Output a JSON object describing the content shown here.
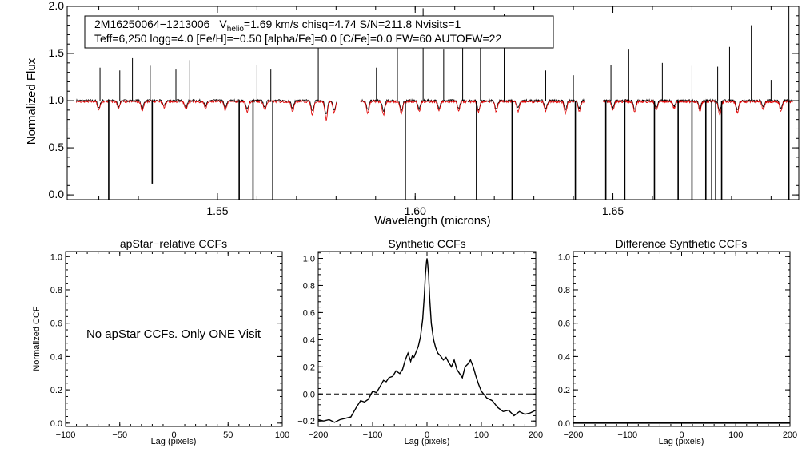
{
  "chart_data": [
    {
      "type": "line",
      "id": "spectrum",
      "xlabel": "Wavelength (microns)",
      "ylabel": "Normalized Flux",
      "xlim": [
        1.512,
        1.697
      ],
      "ylim": [
        -0.05,
        2.0
      ],
      "xticks": [
        1.55,
        1.6,
        1.65
      ],
      "xtick_labels": [
        "1.55",
        "1.60",
        "1.65"
      ],
      "yticks": [
        0.0,
        0.5,
        1.0,
        1.5,
        2.0
      ],
      "ytick_labels": [
        "0.0",
        "0.5",
        "1.0",
        "1.5",
        "2.0"
      ],
      "annotation": {
        "id_text": "2M16250064−1213006",
        "vhelio_prefix": "V",
        "vhelio_sub": "helio",
        "vhelio_rest": "=1.69 km/s  chisq=4.74  S/N=211.8  Nvisits=1",
        "line2": "Teff=6,250 logg=4.0 [Fe/H]=−0.50 [alpha/Fe]=0.0 [C/Fe]=0.0 FW=60 AUTOFW=22"
      },
      "chips": [
        [
          1.5143,
          1.5803
        ],
        [
          1.5862,
          1.6428
        ],
        [
          1.6476,
          1.6955
        ]
      ],
      "series": [
        {
          "name": "observed",
          "color": "#000000",
          "baseline": 1.0
        },
        {
          "name": "model",
          "color": "#e00000",
          "baseline": 0.99
        }
      ],
      "emission_spikes": [
        [
          1.5203,
          1.35
        ],
        [
          1.5253,
          1.32
        ],
        [
          1.5285,
          1.45
        ],
        [
          1.533,
          1.37
        ],
        [
          1.5395,
          1.33
        ],
        [
          1.543,
          1.43
        ],
        [
          1.56,
          1.38
        ],
        [
          1.5635,
          1.33
        ],
        [
          1.5755,
          1.9
        ],
        [
          1.5902,
          1.35
        ],
        [
          1.5955,
          1.6
        ],
        [
          1.602,
          1.98
        ],
        [
          1.6072,
          1.55
        ],
        [
          1.612,
          1.57
        ],
        [
          1.6165,
          1.8
        ],
        [
          1.6225,
          1.92
        ],
        [
          1.633,
          1.32
        ],
        [
          1.64,
          1.27
        ],
        [
          1.6495,
          1.38
        ],
        [
          1.654,
          1.55
        ],
        [
          1.6625,
          1.4
        ],
        [
          1.67,
          1.37
        ],
        [
          1.6765,
          1.36
        ],
        [
          1.6795,
          1.57
        ],
        [
          1.685,
          1.8
        ],
        [
          1.69,
          1.22
        ],
        [
          1.6945,
          2.0
        ]
      ],
      "absorption_drops": [
        [
          1.5225,
          -0.05
        ],
        [
          1.5335,
          0.12
        ],
        [
          1.5555,
          -0.05
        ],
        [
          1.559,
          -0.05
        ],
        [
          1.564,
          -0.05
        ],
        [
          1.5975,
          -0.05
        ],
        [
          1.6155,
          -0.05
        ],
        [
          1.6245,
          -0.05
        ],
        [
          1.6405,
          -0.05
        ],
        [
          1.6482,
          -0.05
        ],
        [
          1.653,
          -0.05
        ],
        [
          1.6605,
          -0.05
        ],
        [
          1.6665,
          -0.05
        ],
        [
          1.67,
          -0.05
        ],
        [
          1.6735,
          -0.05
        ],
        [
          1.675,
          -0.05
        ],
        [
          1.676,
          -0.05
        ],
        [
          1.6775,
          -0.05
        ],
        [
          1.6945,
          -0.05
        ]
      ],
      "model_dips": [
        [
          1.52,
          0.9
        ],
        [
          1.525,
          0.92
        ],
        [
          1.531,
          0.9
        ],
        [
          1.5365,
          0.93
        ],
        [
          1.542,
          0.91
        ],
        [
          1.547,
          0.92
        ],
        [
          1.552,
          0.9
        ],
        [
          1.5575,
          0.88
        ],
        [
          1.562,
          0.9
        ],
        [
          1.569,
          0.89
        ],
        [
          1.574,
          0.85
        ],
        [
          1.5775,
          0.8
        ],
        [
          1.5795,
          0.87
        ],
        [
          1.588,
          0.87
        ],
        [
          1.592,
          0.85
        ],
        [
          1.5965,
          0.86
        ],
        [
          1.601,
          0.88
        ],
        [
          1.606,
          0.9
        ],
        [
          1.611,
          0.89
        ],
        [
          1.616,
          0.87
        ],
        [
          1.6205,
          0.88
        ],
        [
          1.626,
          0.89
        ],
        [
          1.633,
          0.89
        ],
        [
          1.638,
          0.87
        ],
        [
          1.6415,
          0.89
        ],
        [
          1.65,
          0.9
        ],
        [
          1.6555,
          0.88
        ],
        [
          1.661,
          0.9
        ],
        [
          1.6655,
          0.92
        ],
        [
          1.672,
          0.89
        ],
        [
          1.677,
          0.85
        ],
        [
          1.6815,
          0.87
        ],
        [
          1.688,
          0.91
        ],
        [
          1.6925,
          0.89
        ]
      ]
    },
    {
      "type": "empty",
      "id": "apstar",
      "title": "apStar−relative CCFs",
      "xlabel": "Lag (pixels)",
      "ylabel": "Normalized CCF",
      "xlim": [
        -100,
        100
      ],
      "ylim": [
        -0.02,
        1.03
      ],
      "xticks": [
        -100,
        -50,
        0,
        50,
        100
      ],
      "xtick_labels": [
        "−100",
        "−50",
        "0",
        "50",
        "100"
      ],
      "yticks": [
        0.0,
        0.2,
        0.4,
        0.6,
        0.8,
        1.0
      ],
      "ytick_labels": [
        "0.0",
        "0.2",
        "0.4",
        "0.6",
        "0.8",
        "1.0"
      ],
      "message": "No apStar CCFs.  Only ONE Visit"
    },
    {
      "type": "line",
      "id": "synthetic",
      "title": "Synthetic CCFs",
      "xlabel": "Lag (pixels)",
      "xlim": [
        -200,
        200
      ],
      "ylim": [
        -0.24,
        1.05
      ],
      "xticks": [
        -200,
        -100,
        0,
        100,
        200
      ],
      "xtick_labels": [
        "−200",
        "−100",
        "0",
        "100",
        "200"
      ],
      "yticks": [
        -0.2,
        0.0,
        0.2,
        0.4,
        0.6,
        0.8,
        1.0
      ],
      "ytick_labels": [
        "−0.2",
        "0.0",
        "0.2",
        "0.4",
        "0.6",
        "0.8",
        "1.0"
      ],
      "zero_line": 0.0,
      "x": [
        -200,
        -190,
        -180,
        -170,
        -160,
        -150,
        -140,
        -130,
        -122,
        -115,
        -108,
        -100,
        -93,
        -87,
        -80,
        -75,
        -70,
        -63,
        -57,
        -50,
        -45,
        -40,
        -35,
        -30,
        -27,
        -24,
        -20,
        -16,
        -12,
        -8,
        -5,
        -3,
        -1,
        0,
        1,
        3,
        5,
        8,
        12,
        16,
        20,
        25,
        30,
        35,
        40,
        45,
        50,
        55,
        60,
        65,
        70,
        75,
        80,
        85,
        90,
        95,
        100,
        110,
        120,
        130,
        140,
        150,
        160,
        170,
        180,
        190,
        200
      ],
      "y": [
        -0.19,
        -0.2,
        -0.19,
        -0.21,
        -0.19,
        -0.18,
        -0.17,
        -0.1,
        -0.05,
        -0.06,
        -0.04,
        0.02,
        0.01,
        0.05,
        0.1,
        0.09,
        0.12,
        0.13,
        0.17,
        0.15,
        0.18,
        0.25,
        0.3,
        0.24,
        0.28,
        0.27,
        0.31,
        0.35,
        0.42,
        0.55,
        0.72,
        0.88,
        0.97,
        1.0,
        0.97,
        0.88,
        0.7,
        0.52,
        0.4,
        0.34,
        0.3,
        0.28,
        0.25,
        0.27,
        0.23,
        0.2,
        0.25,
        0.18,
        0.15,
        0.12,
        0.2,
        0.22,
        0.25,
        0.2,
        0.13,
        0.07,
        0.02,
        -0.03,
        -0.05,
        -0.1,
        -0.13,
        -0.12,
        -0.16,
        -0.13,
        -0.15,
        -0.14,
        -0.12
      ]
    },
    {
      "type": "line",
      "id": "difference",
      "title": "Difference Synthetic CCFs",
      "xlabel": "Lag (pixels)",
      "xlim": [
        -200,
        200
      ],
      "ylim": [
        -0.02,
        1.03
      ],
      "xticks": [
        -200,
        -100,
        0,
        100,
        200
      ],
      "xtick_labels": [
        "−200",
        "−100",
        "0",
        "100",
        "200"
      ],
      "yticks": [
        0.0,
        0.2,
        0.4,
        0.6,
        0.8,
        1.0
      ],
      "ytick_labels": [
        "0.0",
        "0.2",
        "0.4",
        "0.6",
        "0.8",
        "1.0"
      ],
      "x": [
        -200,
        200
      ],
      "y": [
        0.0,
        0.0
      ]
    }
  ]
}
